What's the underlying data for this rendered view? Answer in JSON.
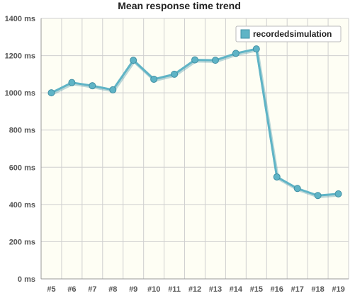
{
  "chart_data": {
    "type": "line",
    "title": "Mean response time trend",
    "xlabel": "",
    "ylabel": "",
    "categories": [
      "#5",
      "#6",
      "#7",
      "#8",
      "#9",
      "#10",
      "#11",
      "#12",
      "#13",
      "#14",
      "#15",
      "#16",
      "#17",
      "#18",
      "#19"
    ],
    "series": [
      {
        "name": "recordedsimulation",
        "values": [
          1000,
          1055,
          1038,
          1016,
          1175,
          1073,
          1100,
          1177,
          1175,
          1212,
          1236,
          548,
          486,
          448,
          457
        ]
      }
    ],
    "ylim": [
      0,
      1400
    ],
    "yticks": [
      0,
      200,
      400,
      600,
      800,
      1000,
      1200,
      1400
    ],
    "ytick_labels": [
      "0 ms",
      "200 ms",
      "400 ms",
      "600 ms",
      "800 ms",
      "1000 ms",
      "1200 ms",
      "1400 ms"
    ],
    "grid": true,
    "legend_position": "top-right",
    "colors": {
      "series": "#5fb4c6",
      "series_dark": "#3f8fa3",
      "plot_background": "#fefef4",
      "grid": "#cfcfcf",
      "frame": "#999999"
    }
  }
}
